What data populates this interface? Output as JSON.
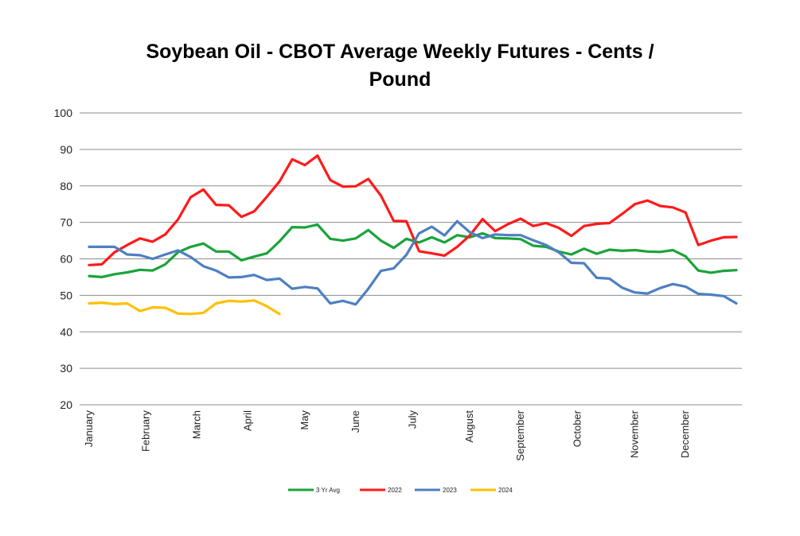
{
  "chart_data": {
    "type": "line",
    "title_line1": "Soybean Oil - CBOT Average Weekly Futures - Cents /",
    "title_line2": "Pound",
    "ylim": [
      20,
      100
    ],
    "yticks": [
      "20",
      "30",
      "40",
      "50",
      "60",
      "70",
      "80",
      "90",
      "100"
    ],
    "grid": true,
    "legend_position": "bottom",
    "weeks": 52,
    "month_labels": [
      {
        "label": "January",
        "week": 1
      },
      {
        "label": "February",
        "week": 5.5
      },
      {
        "label": "March",
        "week": 9.5
      },
      {
        "label": "April",
        "week": 13.5
      },
      {
        "label": "May",
        "week": 18
      },
      {
        "label": "June",
        "week": 22
      },
      {
        "label": "July",
        "week": 26.5
      },
      {
        "label": "August",
        "week": 31
      },
      {
        "label": "September",
        "week": 35
      },
      {
        "label": "October",
        "week": 39.5
      },
      {
        "label": "November",
        "week": 44
      },
      {
        "label": "December",
        "week": 48
      }
    ],
    "series": [
      {
        "name": "3 Yr Avg",
        "color": "#1aa33a",
        "values": [
          55.3,
          55.0,
          55.8,
          56.3,
          57.0,
          56.8,
          58.5,
          61.8,
          63.3,
          64.2,
          62.0,
          62.0,
          59.6,
          60.6,
          61.5,
          64.8,
          68.7,
          68.6,
          69.4,
          65.5,
          65.0,
          65.6,
          67.9,
          65.0,
          63.0,
          65.5,
          64.5,
          65.9,
          64.5,
          66.5,
          65.9,
          67.0,
          65.7,
          65.6,
          65.4,
          63.6,
          63.3,
          62.0,
          61.2,
          62.8,
          61.4,
          62.5,
          62.2,
          62.4,
          62.0,
          61.9,
          62.4,
          60.7,
          56.8,
          56.2,
          56.7,
          56.9
        ]
      },
      {
        "name": "2022",
        "color": "#ff1a1a",
        "values": [
          58.3,
          58.5,
          61.8,
          63.8,
          65.6,
          64.7,
          66.7,
          70.8,
          76.9,
          79.0,
          74.8,
          74.7,
          71.5,
          73.0,
          77.0,
          81.2,
          87.3,
          85.7,
          88.3,
          81.6,
          79.8,
          79.9,
          81.9,
          77.3,
          70.4,
          70.3,
          62.1,
          61.5,
          60.9,
          63.3,
          66.4,
          70.9,
          67.6,
          69.5,
          71.0,
          69.0,
          69.8,
          68.5,
          66.3,
          69.0,
          69.6,
          69.8,
          72.3,
          75.0,
          76.0,
          74.5,
          74.1,
          72.7,
          63.8,
          65.0,
          65.9,
          66.0
        ]
      },
      {
        "name": "2023",
        "color": "#4e7fc2",
        "values": [
          63.3,
          63.3,
          63.3,
          61.2,
          61.0,
          60.0,
          61.2,
          62.3,
          60.5,
          58.0,
          56.8,
          54.9,
          55.0,
          55.6,
          54.2,
          54.6,
          51.8,
          52.3,
          51.9,
          47.8,
          48.5,
          47.5,
          51.8,
          56.7,
          57.4,
          61.1,
          67.0,
          68.8,
          66.4,
          70.3,
          67.3,
          65.7,
          66.7,
          66.5,
          66.5,
          65.1,
          63.8,
          61.8,
          58.9,
          58.8,
          54.8,
          54.6,
          52.1,
          50.8,
          50.5,
          52.0,
          53.1,
          52.4,
          50.4,
          50.2,
          49.8,
          47.8
        ]
      },
      {
        "name": "2024",
        "color": "#ffc000",
        "values": [
          47.8,
          48.0,
          47.6,
          47.8,
          45.7,
          46.7,
          46.6,
          45.0,
          44.9,
          45.2,
          47.8,
          48.5,
          48.3,
          48.6,
          47.0,
          44.9
        ]
      }
    ]
  }
}
